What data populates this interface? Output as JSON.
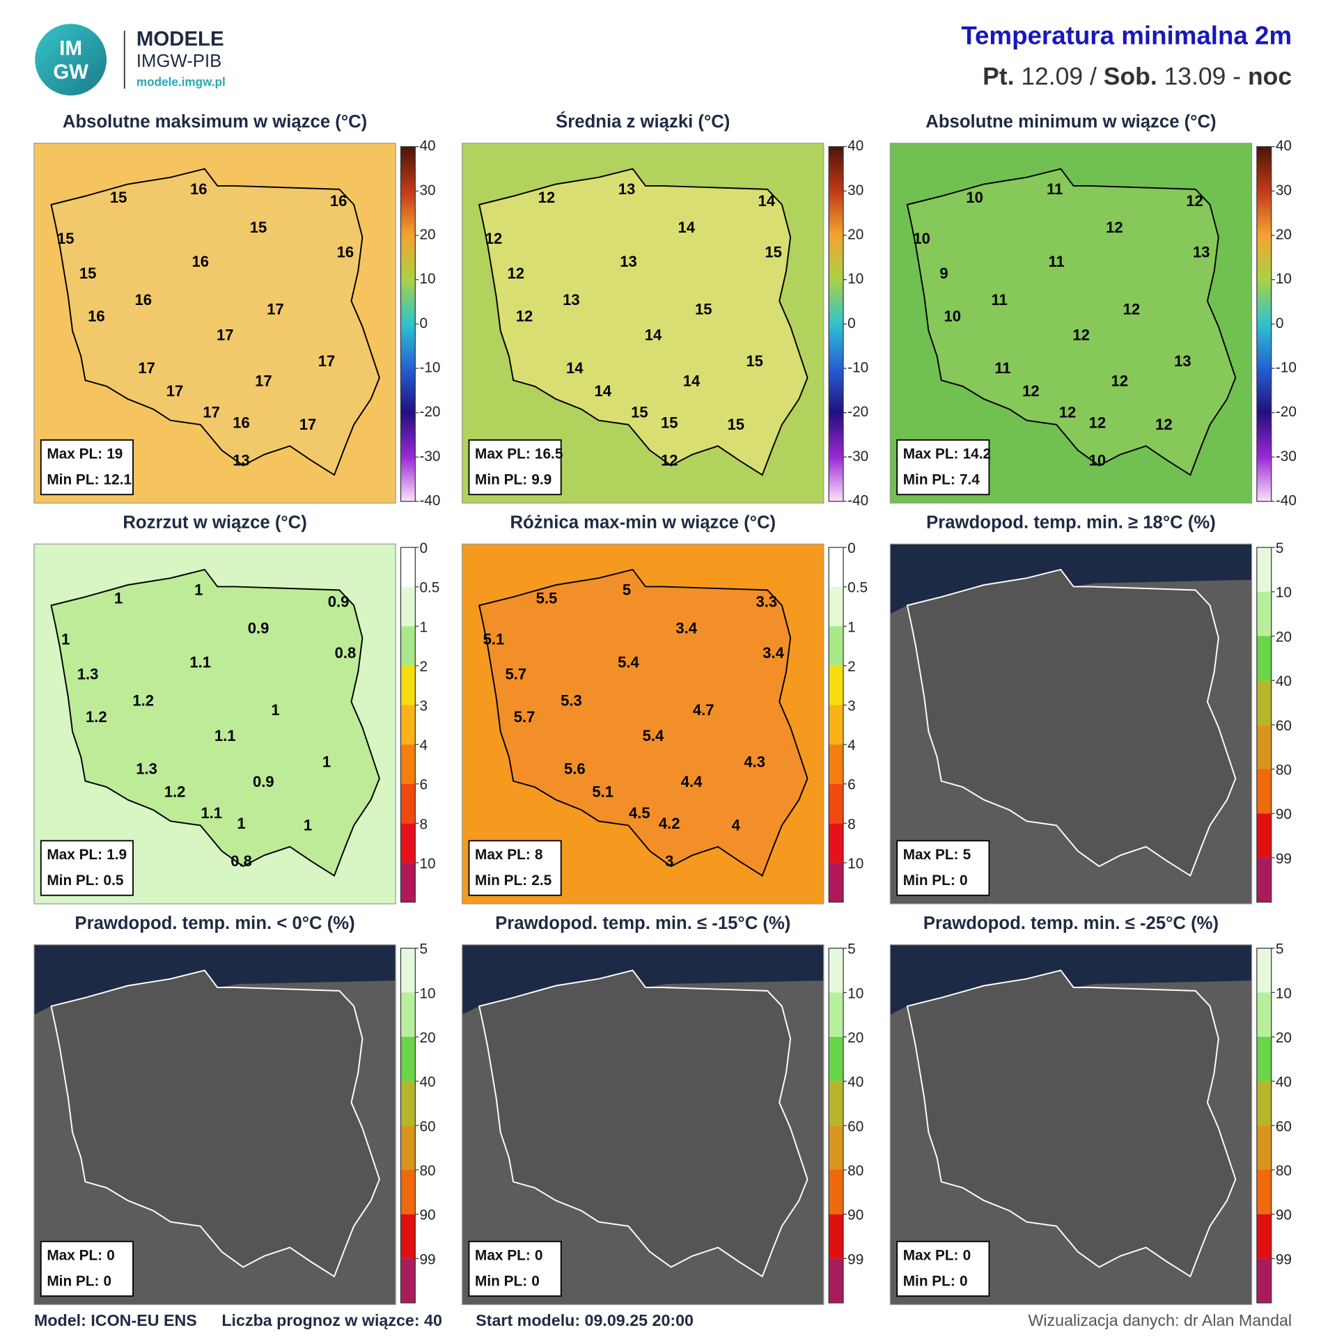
{
  "header": {
    "logo_text": [
      "IM",
      "GW"
    ],
    "brand": "MODELE",
    "org": "IMGW-PIB",
    "url": "modele.imgw.pl",
    "title": "Temperatura minimalna 2m",
    "subtitle": [
      "Pt.",
      "12.09 /",
      "Sob.",
      "13.09 -",
      "noc"
    ]
  },
  "stat_labels": {
    "max": "Max PL:",
    "min": "Min PL:"
  },
  "scales": {
    "temp": {
      "kind": "continuous",
      "lim": [
        -40,
        40
      ],
      "ticks": [
        40,
        30,
        20,
        10,
        0,
        -10,
        -20,
        -30,
        -40
      ],
      "colors": [
        "#4a1608",
        "#c2391a",
        "#f3a431",
        "#a9d244",
        "#2fc3cf",
        "#2460d4",
        "#22107e",
        "#9b28d6",
        "#fbe3f8"
      ]
    },
    "spread": {
      "kind": "discrete",
      "ticks": [
        0,
        0.5,
        1,
        2,
        3,
        4,
        6,
        8,
        10
      ],
      "colors": [
        "#ffffff",
        "#e4f8d6",
        "#a9e98a",
        "#f7dd10",
        "#f9b318",
        "#f47e10",
        "#f04a10",
        "#e8101a",
        "#b0185a"
      ]
    },
    "prob": {
      "kind": "discrete",
      "ticks": [
        5,
        10,
        20,
        40,
        60,
        80,
        90,
        99
      ],
      "colors": [
        "#e6f8dc",
        "#b8ef9c",
        "#6ad44a",
        "#b5b62c",
        "#d8961c",
        "#ee6a0c",
        "#e01010",
        "#a81c5c"
      ]
    }
  },
  "panels": [
    {
      "title": "Absolutne maksimum w wiązce (°C)",
      "scale": "temp",
      "colors": {
        "background": "#f6c45e",
        "land": "#f2c96a",
        "outline": "#000000"
      },
      "values": [
        15,
        16,
        16,
        15,
        15,
        16,
        15,
        16,
        16,
        17,
        16,
        17,
        17,
        17,
        17,
        17,
        17,
        16,
        17,
        13
      ],
      "max": 19,
      "min": 12.1
    },
    {
      "title": "Średnia z wiązki (°C)",
      "scale": "temp",
      "colors": {
        "background": "#b2d25e",
        "land": "#d9de72",
        "outline": "#000000"
      },
      "values": [
        12,
        13,
        14,
        12,
        14,
        15,
        12,
        13,
        13,
        15,
        12,
        14,
        15,
        14,
        14,
        14,
        15,
        15,
        15,
        12
      ],
      "max": 16.5,
      "min": 9.9
    },
    {
      "title": "Absolutne minimum w wiązce (°C)",
      "scale": "temp",
      "colors": {
        "background": "#70c052",
        "land": "#86c85a",
        "outline": "#000000"
      },
      "values": [
        10,
        11,
        12,
        10,
        12,
        13,
        9,
        11,
        11,
        12,
        10,
        12,
        13,
        11,
        12,
        12,
        12,
        12,
        12,
        10
      ],
      "max": 14.2,
      "min": 7.4
    },
    {
      "title": "Rozrzut w wiązce (°C)",
      "scale": "spread",
      "colors": {
        "background": "#d8f5c4",
        "land": "#bdeb98",
        "outline": "#000000"
      },
      "values": [
        1,
        1,
        0.9,
        1,
        0.9,
        0.8,
        1.3,
        1.1,
        1.2,
        1,
        1.2,
        1.1,
        1,
        1.3,
        0.9,
        1.2,
        1.1,
        1,
        1,
        0.8
      ],
      "max": 1.9,
      "min": 0.5
    },
    {
      "title": "Różnica max-min w wiązce (°C)",
      "scale": "spread",
      "colors": {
        "background": "#f59a1e",
        "land": "#f38f28",
        "outline": "#000000"
      },
      "values": [
        5.5,
        5,
        3.3,
        5.1,
        3.4,
        3.4,
        5.7,
        5.4,
        5.3,
        4.7,
        5.7,
        5.4,
        4.3,
        5.6,
        4.4,
        5.1,
        4.5,
        4.2,
        4,
        3
      ],
      "max": 8,
      "min": 2.5
    },
    {
      "title": "Prawdopod. temp. min. ≥ 18°C (%)",
      "scale": "prob",
      "colors": {
        "background": "#5c5c5c",
        "land": "#555555",
        "outline": "#ffffff",
        "sea": "#1d2a45"
      },
      "max": 5,
      "min": 0
    },
    {
      "title": "Prawdopod. temp. min. < 0°C (%)",
      "scale": "prob",
      "colors": {
        "background": "#5c5c5c",
        "land": "#555555",
        "outline": "#ffffff",
        "sea": "#1d2a45"
      },
      "max": 0,
      "min": 0
    },
    {
      "title": "Prawdopod. temp. min. ≤ -15°C (%)",
      "scale": "prob",
      "colors": {
        "background": "#5c5c5c",
        "land": "#555555",
        "outline": "#ffffff",
        "sea": "#1d2a45"
      },
      "max": 0,
      "min": 0
    },
    {
      "title": "Prawdopod. temp. min. ≤ -25°C (%)",
      "scale": "prob",
      "colors": {
        "background": "#5c5c5c",
        "land": "#555555",
        "outline": "#ffffff",
        "sea": "#1d2a45"
      },
      "max": 0,
      "min": 0
    }
  ],
  "footer": {
    "model": "Model: ICON-EU ENS",
    "members": "Liczba prognoz w wiązce: 40",
    "start": "Start modelu: 09.09.25  20:00",
    "credit": "Wizualizacja danych: dr Alan Mandal"
  }
}
